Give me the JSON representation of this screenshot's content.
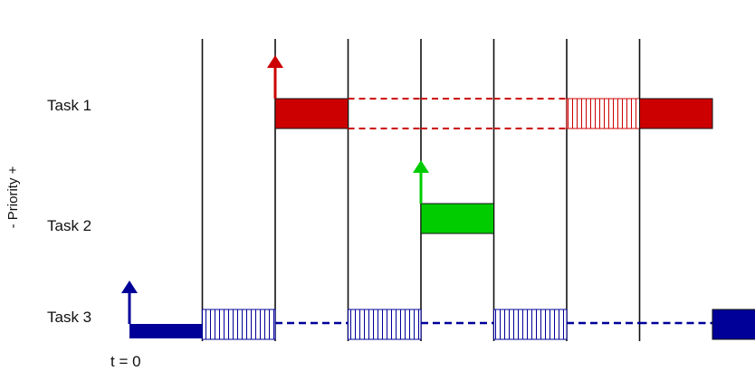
{
  "tasks": [
    {
      "id": "task1",
      "label": "Task 1",
      "color": "#cc0000"
    },
    {
      "id": "task2",
      "label": "Task 2",
      "color": "#00cc00"
    },
    {
      "id": "task3",
      "label": "Task 3",
      "color": "#000099"
    }
  ],
  "axis": {
    "priority_label": "- Priority +",
    "time_origin_label": "t = 0"
  },
  "timeline": {
    "slots": 9,
    "boundaries": [
      1,
      2,
      3,
      4,
      5,
      6,
      7
    ],
    "events": [
      {
        "task": "task3",
        "type": "release",
        "slot": 0
      },
      {
        "task": "task1",
        "type": "release",
        "slot": 2
      },
      {
        "task": "task2",
        "type": "release",
        "slot": 4
      }
    ],
    "segments": [
      {
        "task": "task3",
        "slot": 0,
        "state": "running"
      },
      {
        "task": "task3",
        "slot": 1,
        "state": "hatched"
      },
      {
        "task": "task3",
        "slot": 2,
        "state": "waiting"
      },
      {
        "task": "task3",
        "slot": 3,
        "state": "hatched"
      },
      {
        "task": "task3",
        "slot": 4,
        "state": "waiting"
      },
      {
        "task": "task3",
        "slot": 5,
        "state": "hatched"
      },
      {
        "task": "task3",
        "slot": 6,
        "state": "waiting"
      },
      {
        "task": "task3",
        "slot": 7,
        "state": "waiting"
      },
      {
        "task": "task3",
        "slot": 8,
        "state": "running"
      },
      {
        "task": "task1",
        "slot": 2,
        "state": "running"
      },
      {
        "task": "task1",
        "slot": 3,
        "state": "blocked"
      },
      {
        "task": "task1",
        "slot": 4,
        "state": "blocked"
      },
      {
        "task": "task1",
        "slot": 5,
        "state": "blocked"
      },
      {
        "task": "task1",
        "slot": 6,
        "state": "hatched"
      },
      {
        "task": "task1",
        "slot": 7,
        "state": "running"
      },
      {
        "task": "task2",
        "slot": 4,
        "state": "running"
      }
    ]
  }
}
